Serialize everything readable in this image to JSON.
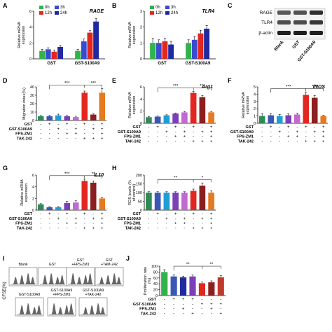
{
  "figure": {
    "treatment_rows": [
      "GST",
      "GST-S100A9",
      "FPS-ZM1",
      "TAK-242"
    ],
    "treatment_matrix": [
      [
        "-",
        "+",
        "-",
        "+",
        "-",
        "+",
        "-",
        "+"
      ],
      [
        "-",
        "-",
        "+",
        "-",
        "+",
        "-",
        "+",
        "+"
      ],
      [
        "-",
        "-",
        "-",
        "+",
        "+",
        "-",
        "-",
        "+"
      ],
      [
        "-",
        "-",
        "-",
        "-",
        "-",
        "+",
        "+",
        "+"
      ]
    ],
    "palette8": [
      "#2e8b57",
      "#3b57b5",
      "#1f9ed6",
      "#7b3fb8",
      "#c06ad1",
      "#e3261f",
      "#8c1f1f",
      "#e7791f"
    ],
    "time_colors": {
      "0h": "#2fb34a",
      "3h": "#3a4bd0",
      "12h": "#e3261f",
      "24h": "#1f2aa0"
    },
    "time_legend": [
      "0h",
      "3h",
      "12h",
      "24h"
    ]
  },
  "chart_data": [
    {
      "panel": "A",
      "type": "bar",
      "title": "RAGE",
      "ylabel": "Relative mRNA expression",
      "categories": [
        "GST",
        "GST-S100A9"
      ],
      "series": [
        {
          "name": "0h",
          "values": [
            1.0,
            1.0
          ]
        },
        {
          "name": "3h",
          "values": [
            1.2,
            2.2
          ]
        },
        {
          "name": "12h",
          "values": [
            0.9,
            3.3
          ]
        },
        {
          "name": "24h",
          "values": [
            1.5,
            4.7
          ]
        }
      ],
      "errors": [
        [
          0.2,
          0.2
        ],
        [
          0.2,
          0.3
        ],
        [
          0.2,
          0.3
        ],
        [
          0.2,
          0.4
        ]
      ],
      "ylim": [
        0,
        6
      ],
      "yticks": [
        "0",
        "2",
        "4",
        "6"
      ]
    },
    {
      "panel": "B",
      "type": "bar",
      "title": "TLR4",
      "ylabel": "Relative mRNA expression",
      "categories": [
        "GST",
        "GST-S100A9"
      ],
      "series": [
        {
          "name": "0h",
          "values": [
            1.0,
            1.0
          ]
        },
        {
          "name": "3h",
          "values": [
            1.0,
            1.2
          ]
        },
        {
          "name": "12h",
          "values": [
            1.1,
            1.6
          ]
        },
        {
          "name": "24h",
          "values": [
            0.9,
            1.9
          ]
        }
      ],
      "errors": [
        [
          0.3,
          0.2
        ],
        [
          0.2,
          0.2
        ],
        [
          0.2,
          0.2
        ],
        [
          0.2,
          0.2
        ]
      ],
      "ylim": [
        0,
        3
      ],
      "yticks": [
        "0",
        "1",
        "2",
        "3"
      ]
    },
    {
      "panel": "D",
      "type": "bar",
      "title": "",
      "ylabel": "Migration index(%)",
      "values": [
        5,
        5,
        6,
        5,
        4,
        33,
        7,
        33
      ],
      "errors": [
        1,
        1,
        1.5,
        1,
        1,
        2,
        1,
        5
      ],
      "ylim": [
        0,
        40
      ],
      "yticks": [
        "0",
        "10",
        "20",
        "30",
        "40"
      ],
      "sig": [
        "***",
        "***"
      ]
    },
    {
      "panel": "E",
      "type": "bar",
      "title": "Arg1",
      "ylabel": "Relative mRNA expression",
      "values": [
        1.0,
        1.1,
        1.3,
        1.6,
        1.8,
        5.0,
        4.3,
        1.8
      ],
      "errors": [
        0.1,
        0.1,
        0.1,
        0.1,
        0.15,
        0.25,
        0.25,
        0.15
      ],
      "ylim": [
        0,
        6
      ],
      "yticks": [
        "0",
        "2",
        "4",
        "6"
      ],
      "sig": [
        "***",
        "***"
      ]
    },
    {
      "panel": "F",
      "type": "bar",
      "title": "iNOS",
      "ylabel": "Relative mRNA expression",
      "values": [
        1.0,
        1.1,
        1.0,
        1.1,
        1.2,
        3.9,
        3.5,
        1.0
      ],
      "errors": [
        0.3,
        0.2,
        0.2,
        0.2,
        0.2,
        0.4,
        0.3,
        0.1
      ],
      "ylim": [
        0,
        5
      ],
      "yticks": [
        "0",
        "1",
        "2",
        "3",
        "4",
        "5"
      ],
      "sig": [
        "***",
        "***"
      ]
    },
    {
      "panel": "G",
      "type": "bar",
      "title": "IL10",
      "ylabel": "Relative mRNA expression",
      "values": [
        1.0,
        0.5,
        0.5,
        1.2,
        1.3,
        5.0,
        4.7,
        2.0
      ],
      "errors": [
        0.1,
        0.1,
        0.1,
        0.3,
        0.3,
        0.3,
        0.3,
        0.2
      ],
      "ylim": [
        0,
        6
      ],
      "yticks": [
        "0",
        "2",
        "4",
        "6"
      ],
      "sig": [
        "***",
        "**"
      ]
    },
    {
      "panel": "H",
      "type": "bar",
      "title": "",
      "ylabel": "ROS levels (% of control)",
      "values": [
        100,
        100,
        100,
        100,
        100,
        110,
        140,
        100
      ],
      "errors": [
        5,
        5,
        5,
        5,
        5,
        10,
        15,
        10
      ],
      "ylim": [
        0,
        200
      ],
      "yticks": [
        "0",
        "50",
        "100",
        "150",
        "200"
      ],
      "sig": [
        "**",
        "*"
      ]
    },
    {
      "panel": "J",
      "type": "bar",
      "title": "",
      "ylabel": "Proliferation rate (%)",
      "values": [
        80,
        65,
        62,
        65,
        42,
        45,
        62
      ],
      "errors": [
        8,
        6,
        4,
        5,
        4,
        5,
        6
      ],
      "ylim": [
        0,
        100
      ],
      "yticks": [
        "0",
        "20",
        "40",
        "60",
        "80",
        "100"
      ],
      "sig": [
        "**",
        "**"
      ],
      "matrix": [
        [
          "-",
          "+",
          "+",
          "+",
          "-",
          "-",
          "-"
        ],
        [
          "-",
          "-",
          "-",
          "-",
          "+",
          "+",
          "+"
        ],
        [
          "-",
          "-",
          "+",
          "-",
          "-",
          "+",
          "-"
        ],
        [
          "-",
          "-",
          "-",
          "+",
          "-",
          "-",
          "+"
        ]
      ]
    }
  ],
  "panel_c": {
    "labels": [
      "RAGE",
      "TLR4",
      "β-actin"
    ],
    "lanes": [
      "Blank",
      "GST",
      "GST-S100A9"
    ]
  },
  "panel_i": {
    "ylabel": "CFSE(%)",
    "panels": [
      "Blank",
      "GST",
      "GST\n+FPS-ZM1",
      "GST\n+TAM-242",
      "GST-S100A9",
      "GST-S100A9\n+FPS-ZM1",
      "GST-S100A9\n+TAK-242"
    ]
  }
}
